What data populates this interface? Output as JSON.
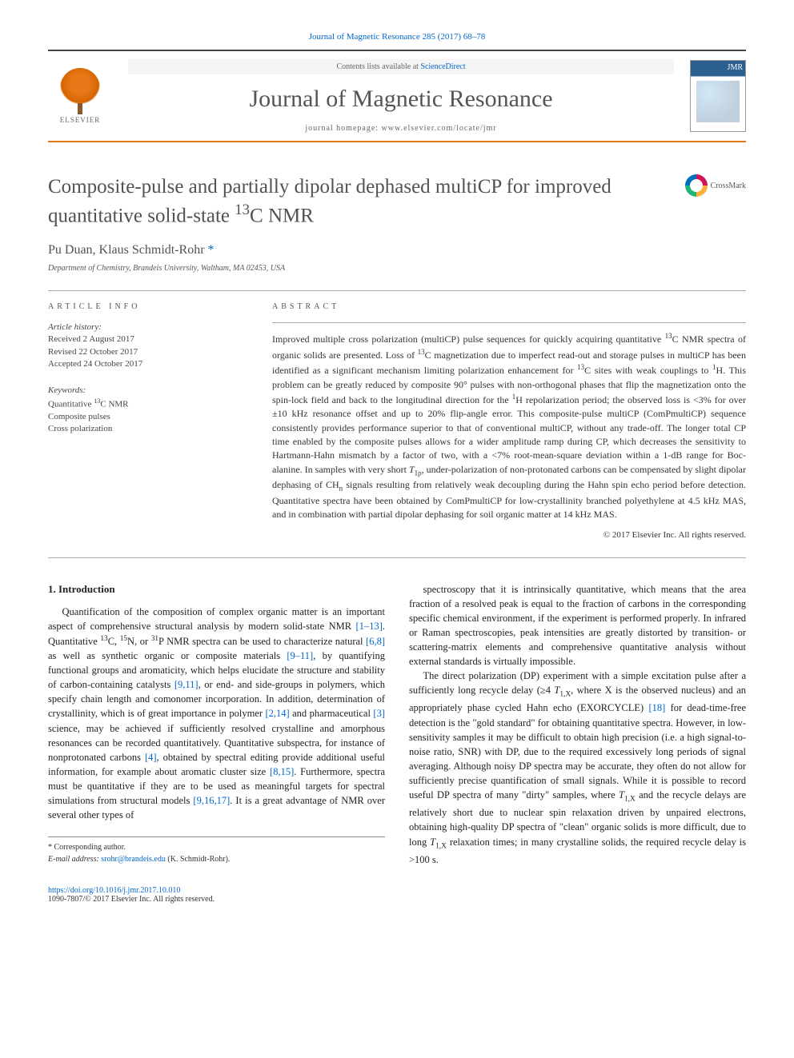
{
  "citation": "Journal of Magnetic Resonance 285 (2017) 68–78",
  "masthead": {
    "contents_prefix": "Contents lists available at ",
    "contents_link": "ScienceDirect",
    "journal": "Journal of Magnetic Resonance",
    "homepage_prefix": "journal homepage: ",
    "homepage_url": "www.elsevier.com/locate/jmr",
    "publisher_name": "ELSEVIER",
    "cover_label": "JMR"
  },
  "colors": {
    "accent_orange": "#e67817",
    "link_blue": "#0066cc",
    "text_gray": "#525252",
    "rule_gray": "#aaaaaa"
  },
  "article": {
    "title_html": "Composite-pulse and partially dipolar dephased multiCP for improved quantitative solid-state <sup>13</sup>C NMR",
    "crossmark": "CrossMark",
    "authors_html": "Pu Duan, Klaus Schmidt-Rohr <a href='#'>*</a>",
    "affiliation": "Department of Chemistry, Brandeis University, Waltham, MA 02453, USA"
  },
  "info": {
    "label": "ARTICLE INFO",
    "history_head": "Article history:",
    "history": [
      "Received 2 August 2017",
      "Revised 22 October 2017",
      "Accepted 24 October 2017"
    ],
    "keywords_head": "Keywords:",
    "keywords_html": [
      "Quantitative <sup>13</sup>C NMR",
      "Composite pulses",
      "Cross polarization"
    ]
  },
  "abstract": {
    "label": "ABSTRACT",
    "text_html": "Improved multiple cross polarization (multiCP) pulse sequences for quickly acquiring quantitative <sup>13</sup>C NMR spectra of organic solids are presented. Loss of <sup>13</sup>C magnetization due to imperfect read-out and storage pulses in multiCP has been identified as a significant mechanism limiting polarization enhancement for <sup>13</sup>C sites with weak couplings to <sup>1</sup>H. This problem can be greatly reduced by composite 90° pulses with non-orthogonal phases that flip the magnetization onto the spin-lock field and back to the longitudinal direction for the <sup>1</sup>H repolarization period; the observed loss is &lt;3% for over ±10 kHz resonance offset and up to 20% flip-angle error. This composite-pulse multiCP (ComPmultiCP) sequence consistently provides performance superior to that of conventional multiCP, without any trade-off. The longer total CP time enabled by the composite pulses allows for a wider amplitude ramp during CP, which decreases the sensitivity to Hartmann-Hahn mismatch by a factor of two, with a &lt;7% root-mean-square deviation within a 1-dB range for Boc-alanine. In samples with very short <i>T</i><sub>1ρ</sub>, under-polarization of non-protonated carbons can be compensated by slight dipolar dephasing of CH<sub>n</sub> signals resulting from relatively weak decoupling during the Hahn spin echo period before detection. Quantitative spectra have been obtained by ComPmultiCP for low-crystallinity branched polyethylene at 4.5 kHz MAS, and in combination with partial dipolar dephasing for soil organic matter at 14 kHz MAS.",
    "copyright": "© 2017 Elsevier Inc. All rights reserved."
  },
  "body": {
    "heading": "1. Introduction",
    "p1_html": "Quantification of the composition of complex organic matter is an important aspect of comprehensive structural analysis by modern solid-state NMR <span class='ref'>[1–13]</span>. Quantitative <sup>13</sup>C, <sup>15</sup>N, or <sup>31</sup>P NMR spectra can be used to characterize natural <span class='ref'>[6,8]</span> as well as synthetic organic or composite materials <span class='ref'>[9–11]</span>, by quantifying functional groups and aromaticity, which helps elucidate the structure and stability of carbon-containing catalysts <span class='ref'>[9,11]</span>, or end- and side-groups in polymers, which specify chain length and comonomer incorporation. In addition, determination of crystallinity, which is of great importance in polymer <span class='ref'>[2,14]</span> and pharmaceutical <span class='ref'>[3]</span> science, may be achieved if sufficiently resolved crystalline and amorphous resonances can be recorded quantitatively. Quantitative subspectra, for instance of nonprotonated carbons <span class='ref'>[4]</span>, obtained by spectral editing provide additional useful information, for example about aromatic cluster size <span class='ref'>[8,15]</span>. Furthermore, spectra must be quantitative if they are to be used as meaningful targets for spectral simulations from structural models <span class='ref'>[9,16,17]</span>. It is a great advantage of NMR over several other types of",
    "p2_html": "spectroscopy that it is intrinsically quantitative, which means that the area fraction of a resolved peak is equal to the fraction of carbons in the corresponding specific chemical environment, if the experiment is performed properly. In infrared or Raman spectroscopies, peak intensities are greatly distorted by transition- or scattering-matrix elements and comprehensive quantitative analysis without external standards is virtually impossible.",
    "p3_html": "The direct polarization (DP) experiment with a simple excitation pulse after a sufficiently long recycle delay (≥4 <i>T</i><sub>1,X</sub>, where X is the observed nucleus) and an appropriately phase cycled Hahn echo (EXORCYCLE) <span class='ref'>[18]</span> for dead-time-free detection is the \"gold standard\" for obtaining quantitative spectra. However, in low-sensitivity samples it may be difficult to obtain high precision (i.e. a high signal-to-noise ratio, SNR) with DP, due to the required excessively long periods of signal averaging. Although noisy DP spectra may be accurate, they often do not allow for sufficiently precise quantification of small signals. While it is possible to record useful DP spectra of many \"dirty\" samples, where <i>T</i><sub>1,X</sub> and the recycle delays are relatively short due to nuclear spin relaxation driven by unpaired electrons, obtaining high-quality DP spectra of \"clean\" organic solids is more difficult, due to long <i>T</i><sub>1,X</sub> relaxation times; in many crystalline solids, the required recycle delay is >100 s."
  },
  "footnote": {
    "corr": "* Corresponding author.",
    "email_label": "E-mail address: ",
    "email": "srohr@brandeis.edu",
    "email_suffix": " (K. Schmidt-Rohr)."
  },
  "footer": {
    "doi": "https://doi.org/10.1016/j.jmr.2017.10.010",
    "issn_line": "1090-7807/© 2017 Elsevier Inc. All rights reserved."
  }
}
